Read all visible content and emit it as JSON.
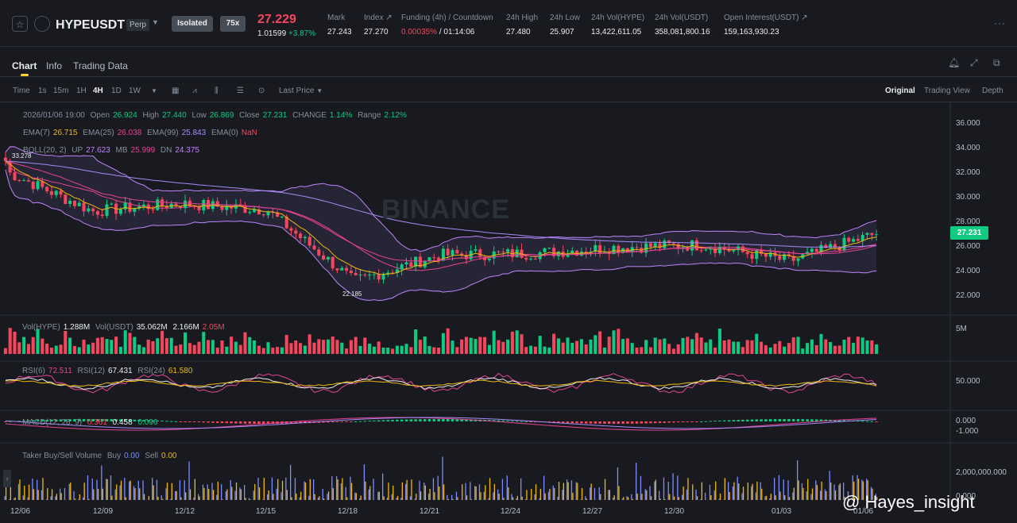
{
  "header": {
    "symbol": "HYPEUSDT",
    "contract_type": "Perp",
    "margin_mode": "Isolated",
    "leverage": "75x",
    "last_price": "27.229",
    "price_sub": "1.01599",
    "change_pct": "+3.87%",
    "stats": [
      {
        "label": "Mark",
        "value": "27.243"
      },
      {
        "label": "Index ↗",
        "value": "27.270"
      },
      {
        "label": "Funding (4h) / Countdown",
        "value_a": "0.00035%",
        "value_b": "/ 01:14:06"
      },
      {
        "label": "24h High",
        "value": "27.480"
      },
      {
        "label": "24h Low",
        "value": "25.907"
      },
      {
        "label": "24h Vol(HYPE)",
        "value": "13,422,611.05"
      },
      {
        "label": "24h Vol(USDT)",
        "value": "358,081,800.16"
      },
      {
        "label": "Open Interest(USDT) ↗",
        "value": "159,163,930.23"
      }
    ]
  },
  "tabs": [
    "Chart",
    "Info",
    "Trading Data"
  ],
  "toolbar": {
    "intervals": [
      "Time",
      "1s",
      "15m",
      "1H",
      "4H",
      "1D",
      "1W"
    ],
    "active_interval": "4H",
    "price_type": "Last Price",
    "views": [
      "Original",
      "Trading View",
      "Depth"
    ],
    "active_view": "Original"
  },
  "legend": {
    "ohlc": {
      "date": "2026/01/06 19:00",
      "open_l": "Open",
      "open": "26.924",
      "high_l": "High",
      "high": "27.440",
      "low_l": "Low",
      "low": "26.869",
      "close_l": "Close",
      "close": "27.231",
      "change_l": "CHANGE",
      "change": "1.14%",
      "range_l": "Range",
      "range": "2.12%"
    },
    "ema": {
      "e7_l": "EMA(7)",
      "e7": "26.715",
      "e25_l": "EMA(25)",
      "e25": "26.038",
      "e99_l": "EMA(99)",
      "e99": "25.843",
      "e0_l": "EMA(0)",
      "e0": "NaN"
    },
    "boll": {
      "l": "BOLL(20, 2)",
      "up_l": "UP",
      "up": "27.623",
      "mb_l": "MB",
      "mb": "25.999",
      "dn_l": "DN",
      "dn": "24.375"
    },
    "vol": {
      "l1": "Vol(HYPE)",
      "v1": "1.288M",
      "l2": "Vol(USDT)",
      "v2": "35.062M",
      "v3": "2.166M",
      "v4": "2.05M"
    },
    "rsi": {
      "r6_l": "RSI(6)",
      "r6": "72.511",
      "r12_l": "RSI(12)",
      "r12": "67.431",
      "r24_l": "RSI(24)",
      "r24": "61.580"
    },
    "macd": {
      "l": "MACD(12, 26, 9)",
      "v1": "0.361",
      "v2": "0.458",
      "v3": "0.096"
    },
    "taker": {
      "l": "Taker Buy/Sell Volume",
      "buy_l": "Buy",
      "buy": "0.00",
      "sell_l": "Sell",
      "sell": "0.00"
    }
  },
  "y_axis": [
    "36.000",
    "34.000",
    "32.000",
    "30.000",
    "28.000",
    "26.000",
    "24.000",
    "22.000"
  ],
  "current_price_tag": "27.231",
  "vol_axis": "5M",
  "rsi_axis": "50.000",
  "macd_axis": [
    "0.000",
    "-1.000"
  ],
  "taker_axis": [
    "2,000,000.000",
    "0.000"
  ],
  "x_axis": [
    "12/06",
    "12/09",
    "12/12",
    "12/15",
    "12/18",
    "12/21",
    "12/24",
    "12/27",
    "12/30",
    "01/03",
    "01/06"
  ],
  "annotations": {
    "high": "33.278",
    "low": "22.185"
  },
  "watermark_text": "BINANCE",
  "overlay_credit": "@ Hayes_insight",
  "colors": {
    "up": "#0ecb81",
    "down": "#f6465d",
    "accent": "#fcd535",
    "bg": "#181a20"
  },
  "chart_data": {
    "type": "candlestick",
    "x": [
      "12/06",
      "12/09",
      "12/12",
      "12/15",
      "12/18",
      "12/21",
      "12/24",
      "12/27",
      "12/30",
      "01/03",
      "01/06"
    ],
    "close_approx": [
      32.2,
      29.0,
      29.6,
      29.1,
      23.4,
      25.5,
      25.6,
      26.1,
      26.3,
      25.0,
      27.2
    ],
    "ylim": [
      21.0,
      37.0
    ]
  }
}
